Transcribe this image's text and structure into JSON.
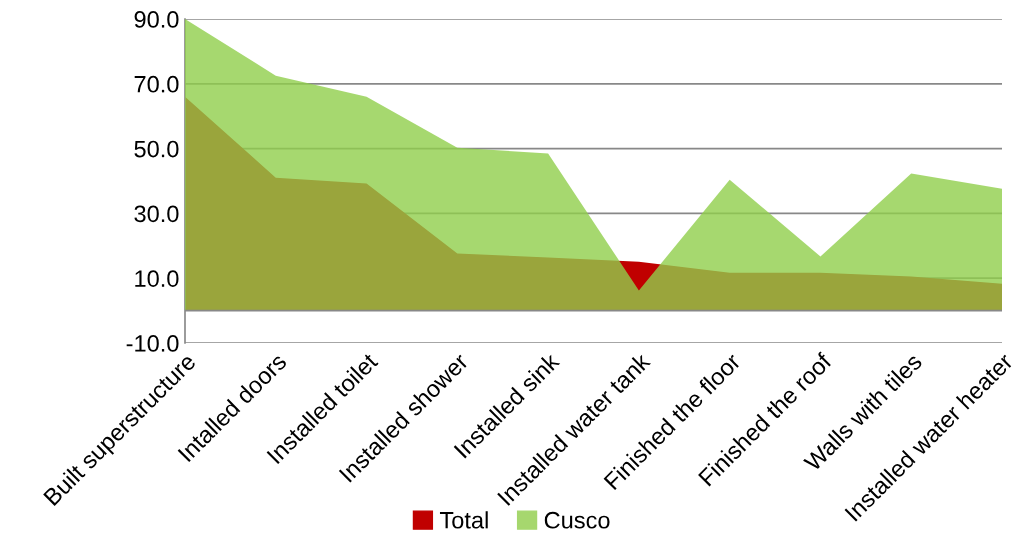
{
  "chart_data": {
    "type": "area",
    "categories": [
      "Built superstructure",
      "Intalled doors",
      "Installed toilet",
      "Installed shower",
      "Installed sink",
      "Installed water tank",
      "Finished the floor",
      "Finished the roof",
      "Walls with tiles",
      "Installed water heater"
    ],
    "series": [
      {
        "name": "Total",
        "color": "#c00000",
        "values": [
          66.0,
          41.0,
          39.2,
          17.6,
          16.4,
          15.1,
          11.7,
          11.7,
          10.5,
          8.3
        ]
      },
      {
        "name": "Cusco",
        "color": "#90ce4b",
        "values": [
          90.0,
          72.5,
          66.0,
          50.3,
          48.5,
          6.2,
          40.4,
          16.7,
          42.3,
          37.6
        ]
      }
    ],
    "ylim": [
      -10,
      90
    ],
    "yticks": [
      {
        "value": -10,
        "label": "-10.0"
      },
      {
        "value": 10,
        "label": "10.0"
      },
      {
        "value": 30,
        "label": "30.0"
      },
      {
        "value": 50,
        "label": "50.0"
      },
      {
        "value": 70,
        "label": "70.0"
      },
      {
        "value": 90,
        "label": "90.0"
      }
    ],
    "grid": "y",
    "legend": "bottom"
  }
}
